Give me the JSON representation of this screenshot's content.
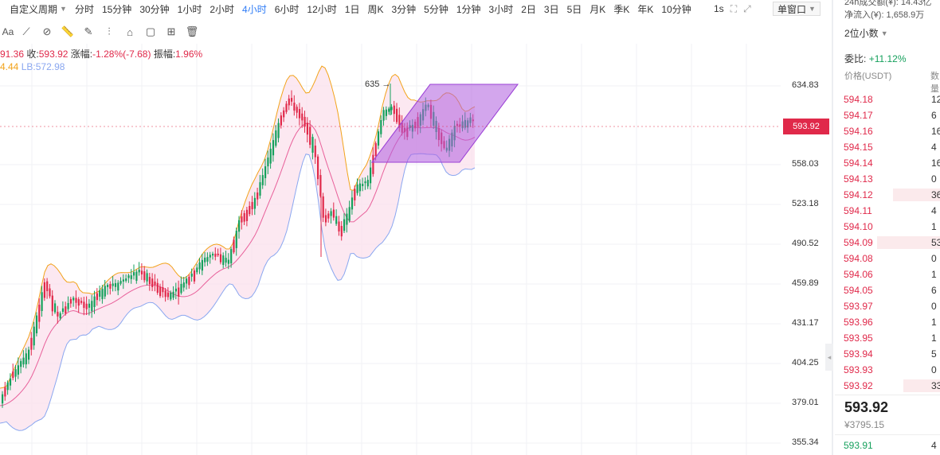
{
  "toolbar": {
    "custom_period": "自定义周期",
    "periods": [
      "分时",
      "15分钟",
      "30分钟",
      "1小时",
      "2小时",
      "4小时",
      "6小时",
      "12小时",
      "1日",
      "周K",
      "3分钟",
      "5分钟",
      "1分钟",
      "3小时",
      "2日",
      "3日",
      "5日",
      "月K",
      "季K",
      "年K",
      "10分钟"
    ],
    "active_period": "4小时",
    "interval_1s": "1s",
    "window_mode": "单窗口"
  },
  "drawing_tools": [
    "text-tool",
    "ray-tool",
    "segment-tool",
    "ruler-tool",
    "pen-tool",
    "fib-tool",
    "note-tool",
    "lock-tool",
    "magnet-tool",
    "trash-tool"
  ],
  "info": {
    "open_partial": "91.36",
    "close_label": "收:",
    "close_value": "593.92",
    "change_label": "涨幅:",
    "change_value": "-1.28%(-7.68)",
    "amplitude_label": "振幅:",
    "amplitude_value": "1.96%",
    "boll_partial": "4.44",
    "lb_label": "LB:",
    "lb_value": "572.98"
  },
  "chart_data": {
    "type": "candlestick",
    "y_axis_labels": [
      "634.83",
      "558.03",
      "523.18",
      "490.52",
      "459.89",
      "431.17",
      "404.25",
      "379.01",
      "355.34"
    ],
    "current_price": "593.92",
    "high_annotation": "635",
    "colors": {
      "up": "#15a05c",
      "down": "#e0294a",
      "upper_band": "#f2a31b",
      "lower_band": "#8aa7f0",
      "middle_band": "#e8609a",
      "band_fill": "#fbe0ec",
      "drawing": "#b05ee0"
    }
  },
  "orderbook": {
    "header_line1": "24h成交额(¥): 14.43亿",
    "header_line2": "净流入(¥): 1,658.9万",
    "precision": "2位小数",
    "ratio_label": "委比:",
    "ratio_value": "+11.12%",
    "price_header": "价格(USDT)",
    "qty_header": "数量",
    "asks": [
      {
        "price": "594.18",
        "qty": "12",
        "depth": 0
      },
      {
        "price": "594.17",
        "qty": "6",
        "depth": 0
      },
      {
        "price": "594.16",
        "qty": "16",
        "depth": 0
      },
      {
        "price": "594.15",
        "qty": "4",
        "depth": 0
      },
      {
        "price": "594.14",
        "qty": "16",
        "depth": 0
      },
      {
        "price": "594.13",
        "qty": "0",
        "depth": 0
      },
      {
        "price": "594.12",
        "qty": "36",
        "depth": 0.45
      },
      {
        "price": "594.11",
        "qty": "4",
        "depth": 0
      },
      {
        "price": "594.10",
        "qty": "1",
        "depth": 0
      },
      {
        "price": "594.09",
        "qty": "53",
        "depth": 0.6
      },
      {
        "price": "594.08",
        "qty": "0",
        "depth": 0
      },
      {
        "price": "594.06",
        "qty": "1",
        "depth": 0
      },
      {
        "price": "594.05",
        "qty": "6",
        "depth": 0
      },
      {
        "price": "593.97",
        "qty": "0",
        "depth": 0
      },
      {
        "price": "593.96",
        "qty": "1",
        "depth": 0
      },
      {
        "price": "593.95",
        "qty": "1",
        "depth": 0
      },
      {
        "price": "593.94",
        "qty": "5",
        "depth": 0
      },
      {
        "price": "593.93",
        "qty": "0",
        "depth": 0
      },
      {
        "price": "593.92",
        "qty": "33",
        "depth": 0.35
      }
    ],
    "last_price": "593.92",
    "last_price_cny": "¥3795.15",
    "bids": [
      {
        "price": "593.91",
        "qty": "4"
      }
    ]
  }
}
